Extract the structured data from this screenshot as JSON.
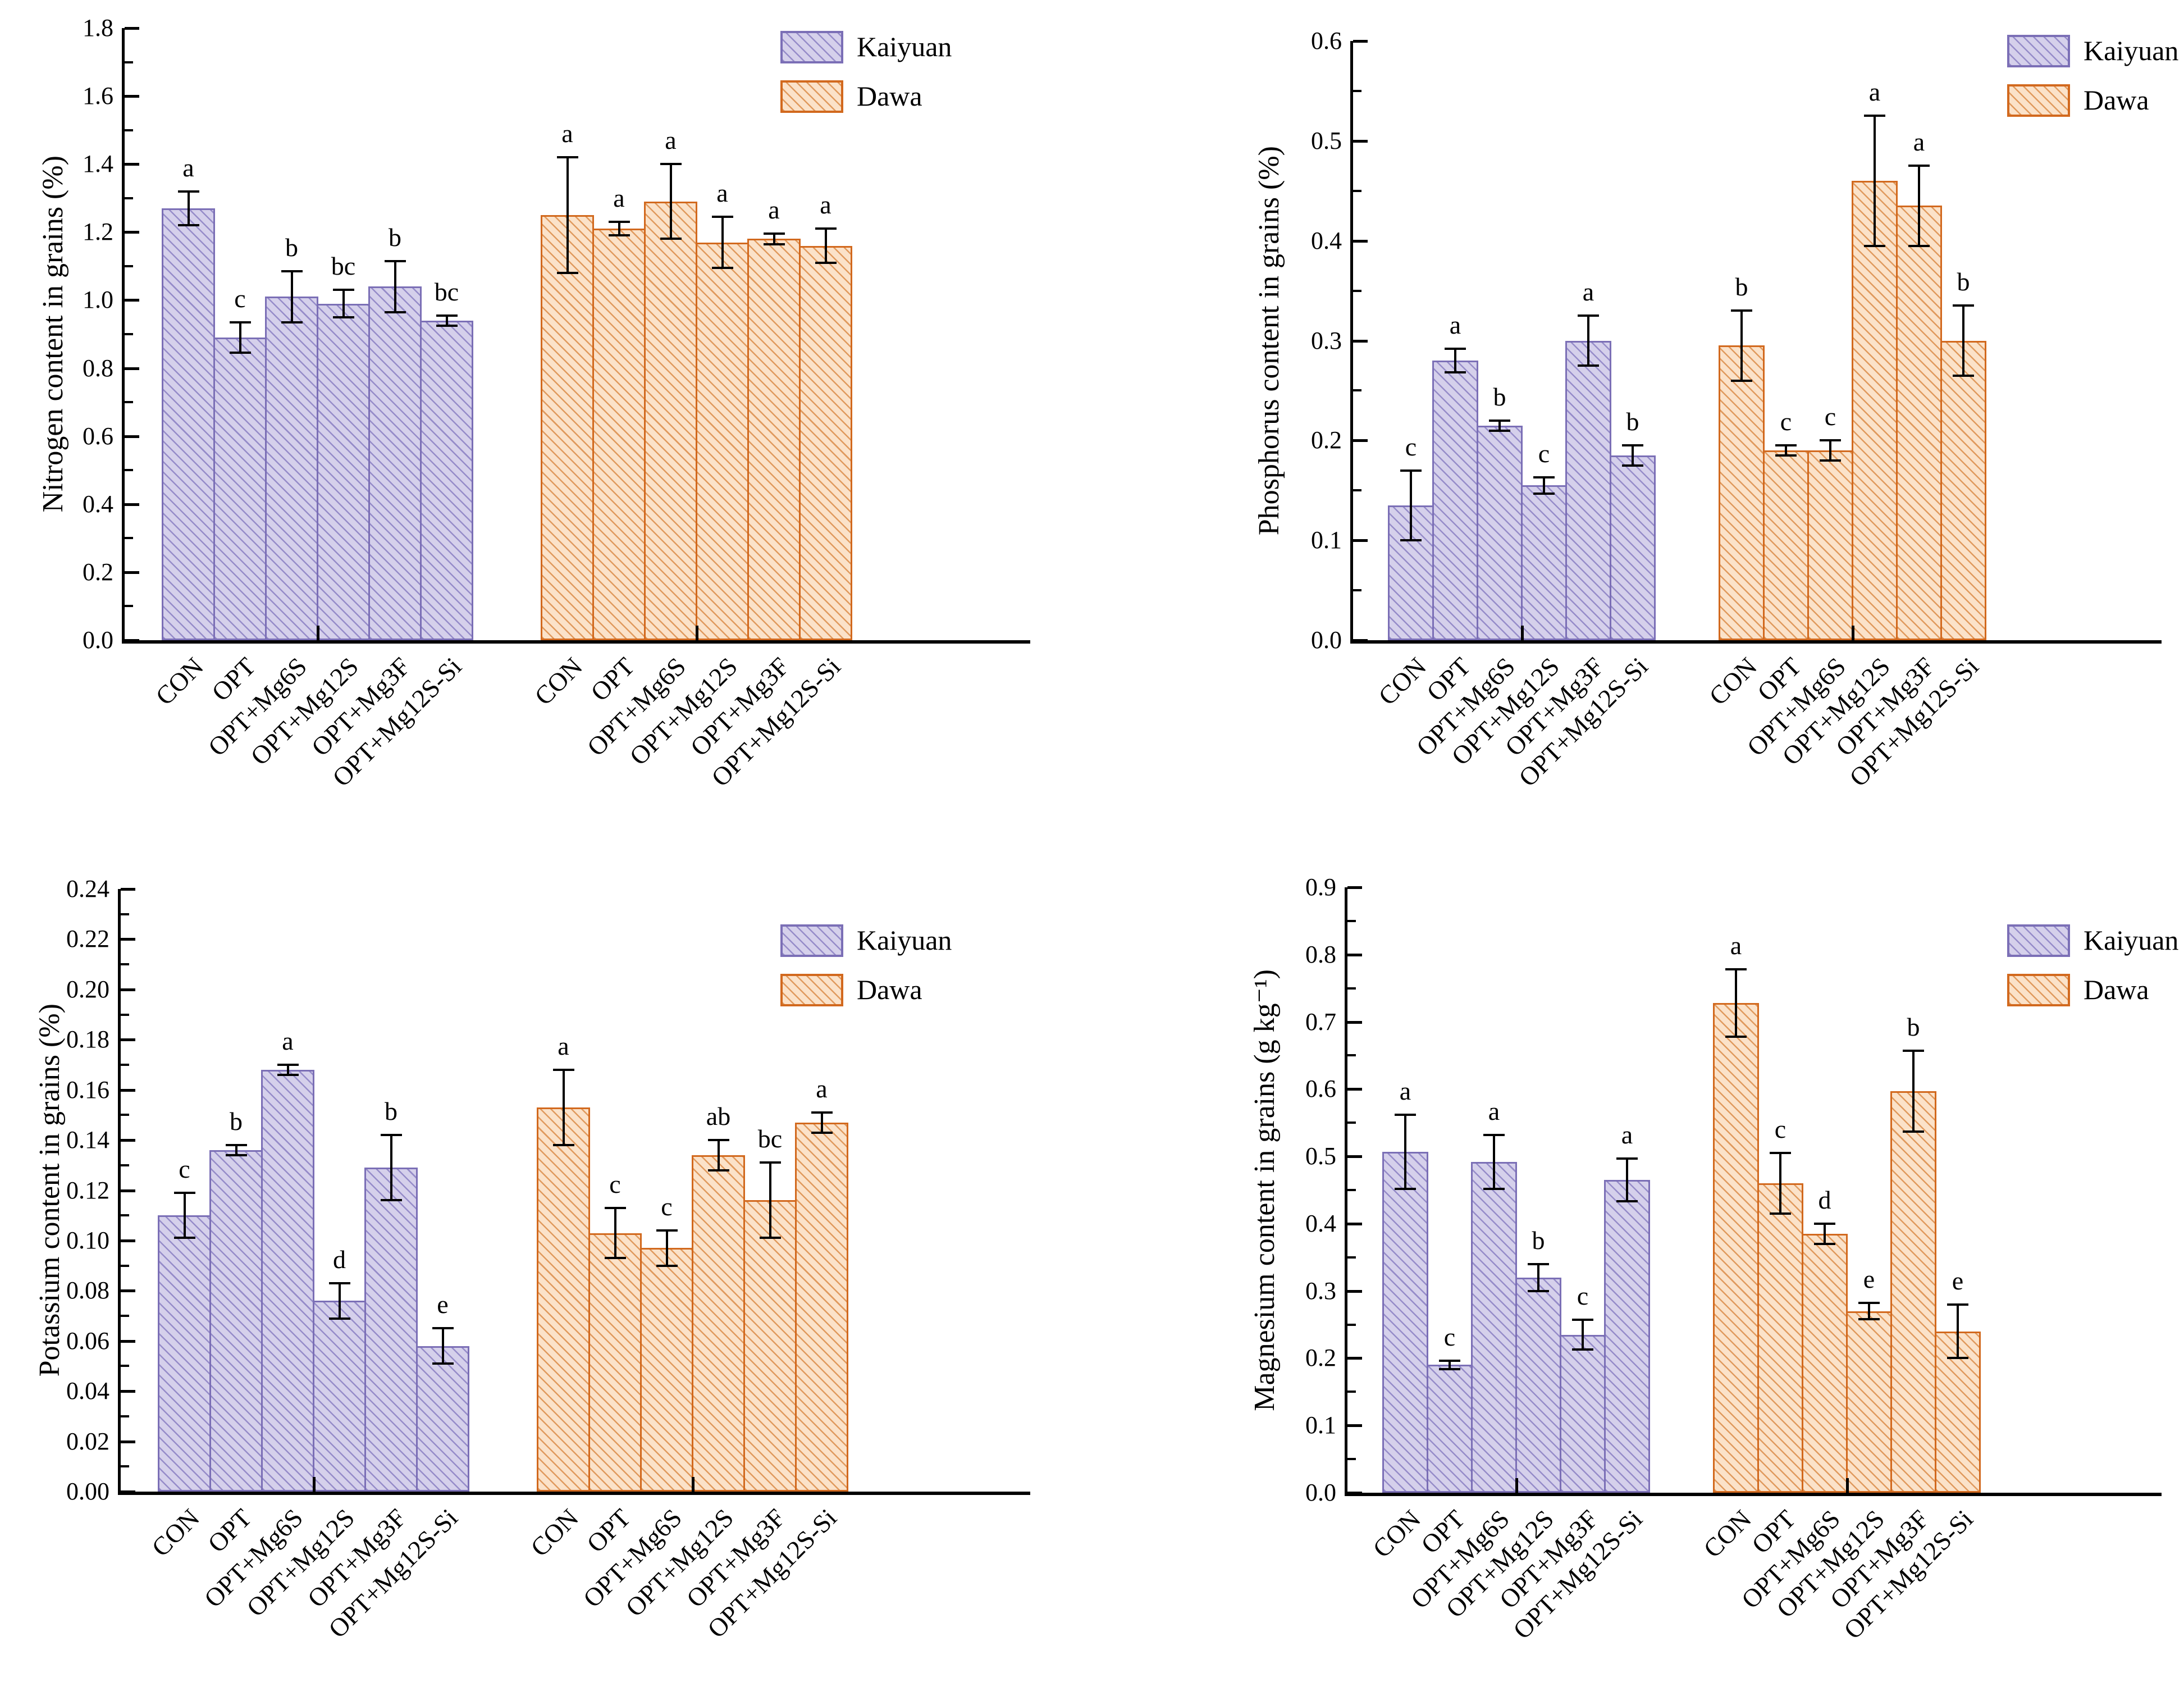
{
  "figure": {
    "background_color": "#ffffff",
    "text_color": "#000000"
  },
  "legend": {
    "position": "top-right",
    "items": [
      {
        "label": "Kaiyuan",
        "fill": "#d5d0eb",
        "edge": "#7b6fb6",
        "hatch_color": "#968cc9",
        "hatch": "\\"
      },
      {
        "label": "Dawa",
        "fill": "#fbe2c9",
        "edge": "#d2691e",
        "hatch_color": "#e09a5e",
        "hatch": "\\"
      }
    ]
  },
  "categories": [
    "CON",
    "OPT",
    "OPT+Mg6S",
    "OPT+Mg12S",
    "OPT+Mg3F",
    "OPT+Mg12S-Si"
  ],
  "chart_data": [
    {
      "type": "bar",
      "title": "",
      "xlabel": "",
      "ylabel": "Nitrogen content in grains (%)",
      "ylim": [
        0,
        1.8
      ],
      "ytick_step": 0.2,
      "ytick_decimals": 1,
      "grid": false,
      "legend_position": "top-right",
      "series": [
        {
          "name": "Kaiyuan",
          "values": [
            1.27,
            0.89,
            1.01,
            0.99,
            1.04,
            0.94
          ],
          "errors": [
            0.05,
            0.045,
            0.075,
            0.04,
            0.075,
            0.015
          ],
          "letters": [
            "a",
            "c",
            "b",
            "bc",
            "b",
            "bc"
          ]
        },
        {
          "name": "Dawa",
          "values": [
            1.25,
            1.21,
            1.29,
            1.17,
            1.18,
            1.16
          ],
          "errors": [
            0.17,
            0.02,
            0.11,
            0.075,
            0.015,
            0.05
          ],
          "letters": [
            "a",
            "a",
            "a",
            "a",
            "a",
            "a"
          ]
        }
      ]
    },
    {
      "type": "bar",
      "title": "",
      "xlabel": "",
      "ylabel": "Phosphorus content in grains (%)",
      "ylim": [
        0,
        0.6
      ],
      "ytick_step": 0.1,
      "ytick_decimals": 1,
      "grid": false,
      "legend_position": "top-right",
      "series": [
        {
          "name": "Kaiyuan",
          "values": [
            0.135,
            0.28,
            0.215,
            0.155,
            0.3,
            0.185
          ],
          "errors": [
            0.035,
            0.012,
            0.005,
            0.008,
            0.025,
            0.01
          ],
          "letters": [
            "c",
            "a",
            "b",
            "c",
            "a",
            "b"
          ]
        },
        {
          "name": "Dawa",
          "values": [
            0.295,
            0.19,
            0.19,
            0.46,
            0.435,
            0.3
          ],
          "errors": [
            0.035,
            0.005,
            0.01,
            0.065,
            0.04,
            0.035
          ],
          "letters": [
            "b",
            "c",
            "c",
            "a",
            "a",
            "b"
          ]
        }
      ]
    },
    {
      "type": "bar",
      "title": "",
      "xlabel": "",
      "ylabel": "Potassium content in grains (%)",
      "ylim": [
        0,
        0.24
      ],
      "ytick_step": 0.02,
      "ytick_decimals": 2,
      "grid": false,
      "legend_position": "top-right",
      "series": [
        {
          "name": "Kaiyuan",
          "values": [
            0.11,
            0.136,
            0.168,
            0.076,
            0.129,
            0.058
          ],
          "errors": [
            0.009,
            0.002,
            0.002,
            0.007,
            0.013,
            0.007
          ],
          "letters": [
            "c",
            "b",
            "a",
            "d",
            "b",
            "e"
          ]
        },
        {
          "name": "Dawa",
          "values": [
            0.153,
            0.103,
            0.097,
            0.134,
            0.116,
            0.147
          ],
          "errors": [
            0.015,
            0.01,
            0.007,
            0.006,
            0.015,
            0.004
          ],
          "letters": [
            "a",
            "c",
            "c",
            "ab",
            "bc",
            "a"
          ]
        }
      ]
    },
    {
      "type": "bar",
      "title": "",
      "xlabel": "",
      "ylabel": "Magnesium content in grains (g kg⁻¹)",
      "ylim": [
        0,
        0.9
      ],
      "ytick_step": 0.1,
      "ytick_decimals": 1,
      "grid": false,
      "legend_position": "top-right",
      "series": [
        {
          "name": "Kaiyuan",
          "values": [
            0.507,
            0.19,
            0.492,
            0.32,
            0.235,
            0.465
          ],
          "errors": [
            0.055,
            0.006,
            0.04,
            0.02,
            0.022,
            0.032
          ],
          "letters": [
            "a",
            "c",
            "a",
            "b",
            "c",
            "a"
          ]
        },
        {
          "name": "Dawa",
          "values": [
            0.728,
            0.46,
            0.385,
            0.27,
            0.597,
            0.24
          ],
          "errors": [
            0.05,
            0.045,
            0.015,
            0.012,
            0.06,
            0.04
          ],
          "letters": [
            "a",
            "c",
            "d",
            "e",
            "b",
            "e"
          ]
        }
      ]
    }
  ]
}
